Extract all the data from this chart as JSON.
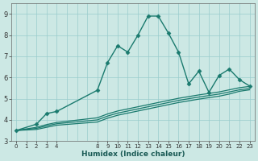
{
  "xlabel": "Humidex (Indice chaleur)",
  "background_color": "#cce8e4",
  "grid_color": "#99cccc",
  "line_color": "#1a7a6e",
  "x_ticks": [
    0,
    1,
    2,
    3,
    4,
    8,
    9,
    10,
    11,
    12,
    13,
    14,
    15,
    16,
    17,
    18,
    19,
    20,
    21,
    22,
    23
  ],
  "ylim": [
    3.0,
    9.5
  ],
  "xlim": [
    -0.5,
    23.5
  ],
  "yticks": [
    3,
    4,
    5,
    6,
    7,
    8,
    9
  ],
  "series": [
    {
      "x": [
        0,
        2,
        3,
        4,
        8,
        9,
        10,
        11,
        12,
        13,
        14,
        15,
        16,
        17,
        18,
        19,
        20,
        21,
        22,
        23
      ],
      "y": [
        3.5,
        3.8,
        4.3,
        4.4,
        5.4,
        6.7,
        7.5,
        7.2,
        8.0,
        8.9,
        8.9,
        8.1,
        7.2,
        5.7,
        6.3,
        5.3,
        6.1,
        6.4,
        5.9,
        5.6
      ],
      "marker": "D",
      "markersize": 2.5,
      "linewidth": 1.0
    },
    {
      "x": [
        0,
        2,
        3,
        4,
        8,
        9,
        10,
        11,
        12,
        13,
        14,
        15,
        16,
        17,
        18,
        19,
        20,
        21,
        22,
        23
      ],
      "y": [
        3.5,
        3.65,
        3.78,
        3.88,
        4.1,
        4.28,
        4.42,
        4.52,
        4.62,
        4.72,
        4.82,
        4.92,
        5.02,
        5.1,
        5.18,
        5.25,
        5.32,
        5.42,
        5.52,
        5.58
      ],
      "marker": null,
      "markersize": 0,
      "linewidth": 0.9
    },
    {
      "x": [
        0,
        2,
        3,
        4,
        8,
        9,
        10,
        11,
        12,
        13,
        14,
        15,
        16,
        17,
        18,
        19,
        20,
        21,
        22,
        23
      ],
      "y": [
        3.5,
        3.6,
        3.72,
        3.82,
        4.0,
        4.18,
        4.32,
        4.42,
        4.52,
        4.62,
        4.72,
        4.82,
        4.92,
        5.0,
        5.08,
        5.15,
        5.22,
        5.32,
        5.42,
        5.48
      ],
      "marker": null,
      "markersize": 0,
      "linewidth": 0.9
    },
    {
      "x": [
        0,
        2,
        3,
        4,
        8,
        9,
        10,
        11,
        12,
        13,
        14,
        15,
        16,
        17,
        18,
        19,
        20,
        21,
        22,
        23
      ],
      "y": [
        3.5,
        3.55,
        3.65,
        3.75,
        3.9,
        4.08,
        4.22,
        4.32,
        4.42,
        4.52,
        4.62,
        4.72,
        4.82,
        4.9,
        4.98,
        5.05,
        5.12,
        5.22,
        5.35,
        5.42
      ],
      "marker": null,
      "markersize": 0,
      "linewidth": 0.9
    }
  ]
}
